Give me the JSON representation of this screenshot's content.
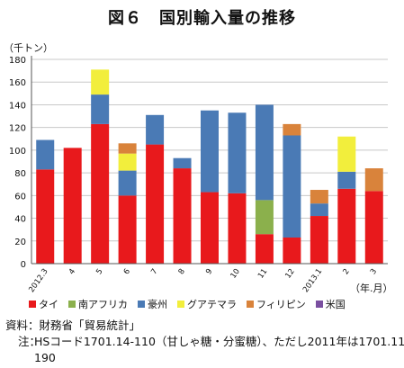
{
  "chart_data": {
    "type": "bar",
    "stacked": true,
    "title": "図６　国別輸入量の推移",
    "ylabel": "（千トン）",
    "xlabel": "（年.月）",
    "ylim": [
      0,
      180
    ],
    "yticks": [
      0,
      20,
      40,
      60,
      80,
      100,
      120,
      140,
      160,
      180
    ],
    "grid": "horizontal",
    "legend": "bottom",
    "categories": [
      "2012.3",
      "4",
      "5",
      "6",
      "7",
      "8",
      "9",
      "10",
      "11",
      "12",
      "2013.1",
      "2",
      "3"
    ],
    "series": [
      {
        "name": "タイ",
        "color": "#e8191c",
        "values": [
          83,
          102,
          123,
          60,
          105,
          84,
          63,
          62,
          26,
          23,
          42,
          66,
          64
        ]
      },
      {
        "name": "南アフリカ",
        "color": "#8bb04c",
        "values": [
          0,
          0,
          0,
          0,
          0,
          0,
          0,
          0,
          30,
          0,
          0,
          0,
          0
        ]
      },
      {
        "name": "豪州",
        "color": "#4a7ab5",
        "values": [
          26,
          0,
          26,
          22,
          26,
          9,
          72,
          71,
          84,
          90,
          11,
          15,
          0
        ]
      },
      {
        "name": "グアテマラ",
        "color": "#f2ee3c",
        "values": [
          0,
          0,
          22,
          15,
          0,
          0,
          0,
          0,
          0,
          0,
          0,
          31,
          0
        ]
      },
      {
        "name": "フィリピン",
        "color": "#d9833b",
        "values": [
          0,
          0,
          0,
          9,
          0,
          0,
          0,
          0,
          0,
          10,
          12,
          0,
          20
        ]
      },
      {
        "name": "米国",
        "color": "#7a4fa0",
        "values": [
          0,
          0,
          0,
          0,
          0,
          0,
          0,
          0,
          0,
          0,
          0,
          0,
          0
        ]
      }
    ]
  },
  "footer": {
    "source": "資料：財務省「貿易統計」",
    "note_label": "注：",
    "note_text": "HSコード1701.14-110（甘しゃ糖・分蜜糖）、ただし2011年は1701.11-190"
  }
}
